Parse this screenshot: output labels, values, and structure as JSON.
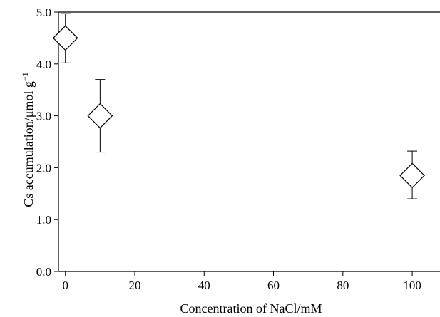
{
  "chart_data": {
    "type": "scatter",
    "title": "",
    "xlabel": "Concentration of NaCl/mM",
    "ylabel": "Cs accumulation/μmol g",
    "ylabel_superscript": "−1",
    "xlim": [
      -2,
      108
    ],
    "ylim": [
      0,
      5.0
    ],
    "x_ticks": [
      0,
      20,
      40,
      60,
      80,
      100
    ],
    "x_tick_labels": [
      "0",
      "20",
      "40",
      "60",
      "80",
      "100"
    ],
    "y_ticks": [
      0,
      1.0,
      2.0,
      3.0,
      4.0,
      5.0
    ],
    "y_tick_labels": [
      "0.0",
      "1.0",
      "2.0",
      "3.0",
      "4.0",
      "5.0"
    ],
    "marker": "diamond-open",
    "grid": false,
    "points": [
      {
        "x": 0,
        "y": 4.5,
        "err_low": 4.02,
        "err_high": 4.97
      },
      {
        "x": 10,
        "y": 3.0,
        "err_low": 2.3,
        "err_high": 3.7
      },
      {
        "x": 100,
        "y": 1.85,
        "err_low": 1.4,
        "err_high": 2.32
      }
    ]
  }
}
